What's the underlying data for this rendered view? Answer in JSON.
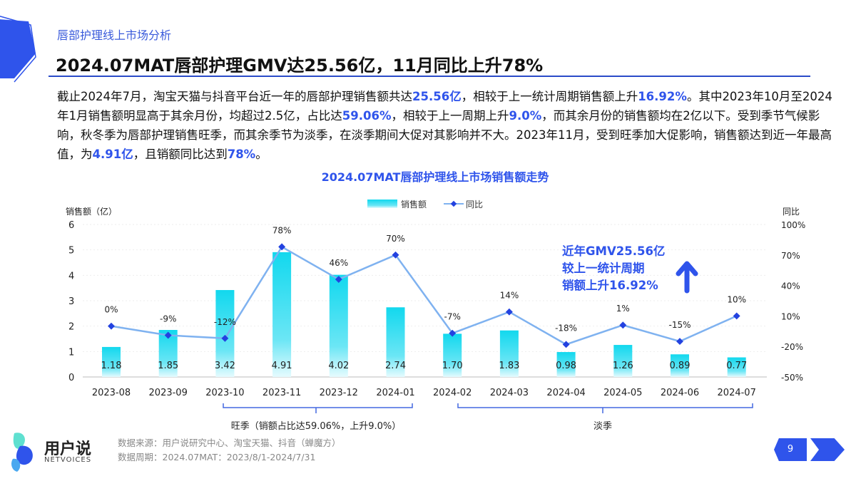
{
  "header": {
    "subtitle": "唇部护理线上市场分析",
    "title": "2024.07MAT唇部护理GMV达25.56亿，11月同比上升78%"
  },
  "body_segments": [
    {
      "t": "截止2024年7月，淘宝天猫与抖音平台近一年的唇部护理销售额共达"
    },
    {
      "t": "25.56亿",
      "hl": true
    },
    {
      "t": "，相较于上一统计周期销售额上升"
    },
    {
      "t": "16.92%",
      "hl": true
    },
    {
      "t": "。其中2023年10月至2024年1月销售额明显高于其余月份，均超过2.5亿，占比达"
    },
    {
      "t": "59.06%",
      "hl": true
    },
    {
      "t": "，相较于上一周期上升"
    },
    {
      "t": "9.0%",
      "hl": true
    },
    {
      "t": "，而其余月份的销售额均在2亿以下。受到季节气候影响，秋冬季为唇部护理销售旺季，而其余季节为淡季，在淡季期间大促对其影响并不大。2023年11月，受到旺季加大促影响，销售额达到近一年最高值，为"
    },
    {
      "t": "4.91亿",
      "hl": true
    },
    {
      "t": "，且销额同比达到"
    },
    {
      "t": "78%",
      "hl": true
    },
    {
      "t": "。"
    }
  ],
  "chart_data": {
    "type": "bar+line",
    "title": "2024.07MAT唇部护理线上市场销售额走势",
    "categories": [
      "2023-08",
      "2023-09",
      "2023-10",
      "2023-11",
      "2023-12",
      "2024-01",
      "2024-02",
      "2024-03",
      "2024-04",
      "2024-05",
      "2024-06",
      "2024-07"
    ],
    "series": [
      {
        "name": "销售额",
        "type": "bar",
        "axis": "left",
        "values": [
          1.18,
          1.85,
          3.42,
          4.91,
          4.02,
          2.74,
          1.7,
          1.83,
          0.98,
          1.26,
          0.89,
          0.77
        ],
        "labels": [
          "1.18",
          "1.85",
          "3.42",
          "4.91",
          "4.02",
          "2.74",
          "1.70",
          "1.83",
          "0.98",
          "1.26",
          "0.89",
          "0.77"
        ]
      },
      {
        "name": "同比",
        "type": "line",
        "axis": "right",
        "values": [
          0,
          -9,
          -12,
          78,
          46,
          70,
          -7,
          14,
          -18,
          1,
          -15,
          10
        ],
        "labels": [
          "0%",
          "-9%",
          "-12%",
          "78%",
          "46%",
          "70%",
          "-7%",
          "14%",
          "-18%",
          "1%",
          "-15%",
          "10%"
        ]
      }
    ],
    "ylabel_left": "销售额（亿）",
    "ylim_left": [
      0,
      6
    ],
    "yticks_left": [
      "0",
      "1",
      "2",
      "3",
      "4",
      "5",
      "6"
    ],
    "ylabel_right": "同比",
    "ylim_right": [
      -50,
      100
    ],
    "yticks_right": [
      "-50%",
      "-20%",
      "10%",
      "40%",
      "70%",
      "100%"
    ],
    "legend": "top-center",
    "colors": {
      "bar": "#12d8ee",
      "line": "#7fb2f0",
      "marker": "#2342e0"
    },
    "annotation": [
      "近年GMV25.56亿",
      "较上一统计周期",
      "销额上升16.92%"
    ],
    "brackets": [
      {
        "label": "旺季（销额占比达59.06%，上升9.0%）",
        "from": "2023-10",
        "to": "2024-01"
      },
      {
        "label": "淡季",
        "from": "2024-02",
        "to": "2024-07"
      }
    ]
  },
  "footer": {
    "logo": "用户说",
    "logo_sub": "NETVOICES",
    "source": "数据来源：用户说研究中心、淘宝天猫、抖音（蝉魔方）",
    "period": "数据周期：2024.07MAT：2023/8/1-2024/7/31",
    "page": "9"
  }
}
